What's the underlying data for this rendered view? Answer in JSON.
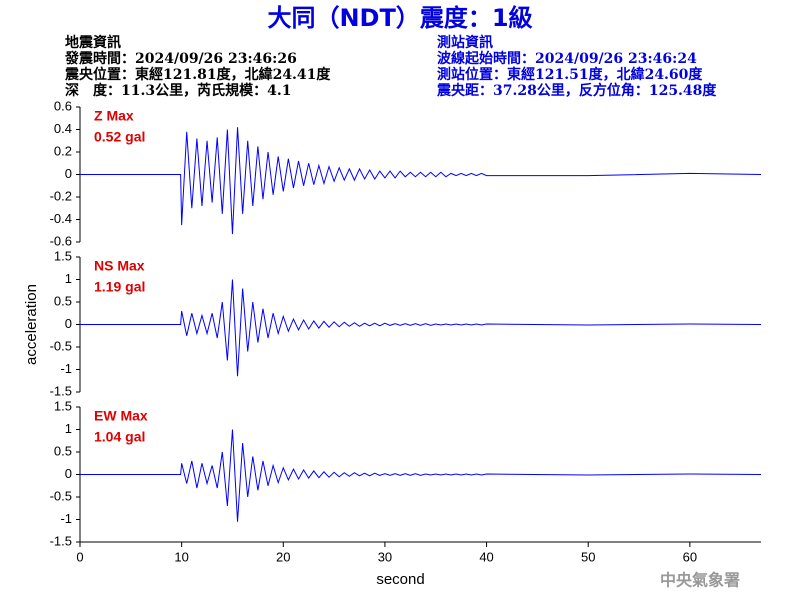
{
  "header": {
    "title": "大同（NDT）震度：1級",
    "left": [
      "地震資訊",
      "發震時間：2024/09/26 23:46:26",
      "震央位置：東經121.81度，北緯24.41度",
      "深　度：11.3公里，芮氏規模：4.1"
    ],
    "right": [
      "測站資訊",
      "波線起始時間：2024/09/26 23:46:24",
      "測站位置：東經121.51度，北緯24.60度",
      "震央距：37.28公里，反方位角：125.48度"
    ],
    "footer": "中央氣象署"
  },
  "chart_data": [
    {
      "type": "line",
      "label": "Z Max",
      "max_label": "0.52 gal",
      "color": "#0000ff",
      "label_color": "#e00000",
      "xlim": [
        0,
        67
      ],
      "ylim": [
        -0.6,
        0.6
      ],
      "yticks": [
        -0.6,
        -0.4,
        -0.2,
        0,
        0.2,
        0.4,
        0.6
      ],
      "x": [
        0,
        9.9,
        10,
        10.5,
        11,
        11.5,
        12,
        12.5,
        13,
        13.5,
        14,
        14.5,
        15,
        15.5,
        16,
        16.5,
        17,
        17.5,
        18,
        18.5,
        19,
        19.5,
        20,
        20.5,
        21,
        21.5,
        22,
        22.5,
        23,
        23.5,
        24,
        24.5,
        25,
        25.5,
        26,
        26.5,
        27,
        27.5,
        28,
        28.5,
        29,
        29.5,
        30,
        30.5,
        31,
        31.5,
        32,
        32.5,
        33,
        33.5,
        34,
        34.5,
        35,
        35.5,
        36,
        36.5,
        37,
        37.5,
        38,
        38.5,
        39,
        39.5,
        40,
        50,
        60,
        67
      ],
      "values": [
        0,
        0,
        -0.45,
        0.38,
        -0.3,
        0.32,
        -0.28,
        0.3,
        -0.25,
        0.33,
        -0.35,
        0.4,
        -0.53,
        0.42,
        -0.35,
        0.3,
        -0.28,
        0.25,
        -0.22,
        0.2,
        -0.18,
        0.16,
        -0.15,
        0.14,
        -0.12,
        0.12,
        -0.1,
        0.1,
        -0.09,
        0.08,
        -0.08,
        0.07,
        -0.06,
        0.06,
        -0.05,
        0.05,
        -0.05,
        0.05,
        -0.04,
        0.04,
        -0.04,
        0.03,
        -0.03,
        0.03,
        -0.03,
        0.03,
        -0.02,
        0.02,
        -0.02,
        0.02,
        -0.02,
        0.02,
        -0.02,
        0.02,
        -0.02,
        0.01,
        -0.01,
        0.01,
        -0.01,
        0.01,
        -0.01,
        0.01,
        -0.01,
        -0.01,
        0.01,
        0
      ]
    },
    {
      "type": "line",
      "label": "NS Max",
      "max_label": "1.19 gal",
      "color": "#0000ff",
      "label_color": "#e00000",
      "ylabel": "acceleration",
      "xlim": [
        0,
        67
      ],
      "ylim": [
        -1.5,
        1.5
      ],
      "yticks": [
        -1.5,
        -1,
        -0.5,
        0,
        0.5,
        1,
        1.5
      ],
      "x": [
        0,
        9.9,
        10,
        10.5,
        11,
        11.5,
        12,
        12.5,
        13,
        13.5,
        14,
        14.5,
        15,
        15.5,
        16,
        16.5,
        17,
        17.5,
        18,
        18.5,
        19,
        19.5,
        20,
        20.5,
        21,
        21.5,
        22,
        22.5,
        23,
        23.5,
        24,
        24.5,
        25,
        25.5,
        26,
        26.5,
        27,
        27.5,
        28,
        28.5,
        29,
        29.5,
        30,
        30.5,
        31,
        31.5,
        32,
        32.5,
        33,
        33.5,
        34,
        34.5,
        35,
        35.5,
        36,
        36.5,
        37,
        37.5,
        38,
        38.5,
        39,
        39.5,
        40,
        50,
        60,
        67
      ],
      "values": [
        0,
        0,
        0.3,
        -0.25,
        0.25,
        -0.2,
        0.2,
        -0.2,
        0.25,
        -0.3,
        0.5,
        -0.8,
        1.0,
        -1.15,
        0.8,
        -0.6,
        0.5,
        -0.4,
        0.35,
        -0.3,
        0.25,
        -0.2,
        0.18,
        -0.15,
        0.12,
        -0.12,
        0.1,
        -0.1,
        0.08,
        -0.08,
        0.07,
        -0.06,
        0.06,
        -0.05,
        0.05,
        -0.04,
        0.04,
        -0.04,
        0.03,
        -0.03,
        0.03,
        -0.03,
        0.03,
        -0.02,
        0.02,
        -0.02,
        0.02,
        -0.02,
        0.02,
        -0.02,
        0.02,
        -0.02,
        0.01,
        -0.01,
        0.01,
        -0.01,
        0.01,
        -0.01,
        0.01,
        -0.01,
        0.01,
        -0.01,
        0.01,
        -0.01,
        0.01,
        0
      ]
    },
    {
      "type": "line",
      "label": "EW Max",
      "max_label": "1.04 gal",
      "color": "#0000ff",
      "label_color": "#e00000",
      "xlabel": "second",
      "xlim": [
        0,
        67
      ],
      "xticks": [
        0,
        10,
        20,
        30,
        40,
        50,
        60
      ],
      "ylim": [
        -1.5,
        1.5
      ],
      "yticks": [
        -1.5,
        -1,
        -0.5,
        0,
        0.5,
        1,
        1.5
      ],
      "x": [
        0,
        9.9,
        10,
        10.5,
        11,
        11.5,
        12,
        12.5,
        13,
        13.5,
        14,
        14.5,
        15,
        15.5,
        16,
        16.5,
        17,
        17.5,
        18,
        18.5,
        19,
        19.5,
        20,
        20.5,
        21,
        21.5,
        22,
        22.5,
        23,
        23.5,
        24,
        24.5,
        25,
        25.5,
        26,
        26.5,
        27,
        27.5,
        28,
        28.5,
        29,
        29.5,
        30,
        30.5,
        31,
        31.5,
        32,
        32.5,
        33,
        33.5,
        34,
        34.5,
        35,
        35.5,
        36,
        36.5,
        37,
        37.5,
        38,
        38.5,
        39,
        39.5,
        40,
        50,
        60,
        67
      ],
      "values": [
        0,
        0,
        0.25,
        -0.2,
        0.3,
        -0.3,
        0.25,
        -0.2,
        0.2,
        -0.3,
        0.5,
        -0.7,
        1.0,
        -1.05,
        0.7,
        -0.5,
        0.4,
        -0.35,
        0.3,
        -0.25,
        0.2,
        -0.18,
        0.15,
        -0.12,
        0.12,
        -0.1,
        0.1,
        -0.08,
        0.08,
        -0.07,
        0.06,
        -0.06,
        0.05,
        -0.05,
        0.04,
        -0.04,
        0.04,
        -0.03,
        0.03,
        -0.03,
        0.03,
        -0.02,
        0.02,
        -0.02,
        0.02,
        -0.02,
        0.02,
        -0.02,
        0.02,
        -0.02,
        0.01,
        -0.01,
        0.01,
        -0.01,
        0.01,
        -0.01,
        0.01,
        -0.01,
        0.01,
        -0.01,
        0.01,
        -0.01,
        0.01,
        -0.01,
        0.01,
        0
      ]
    }
  ]
}
